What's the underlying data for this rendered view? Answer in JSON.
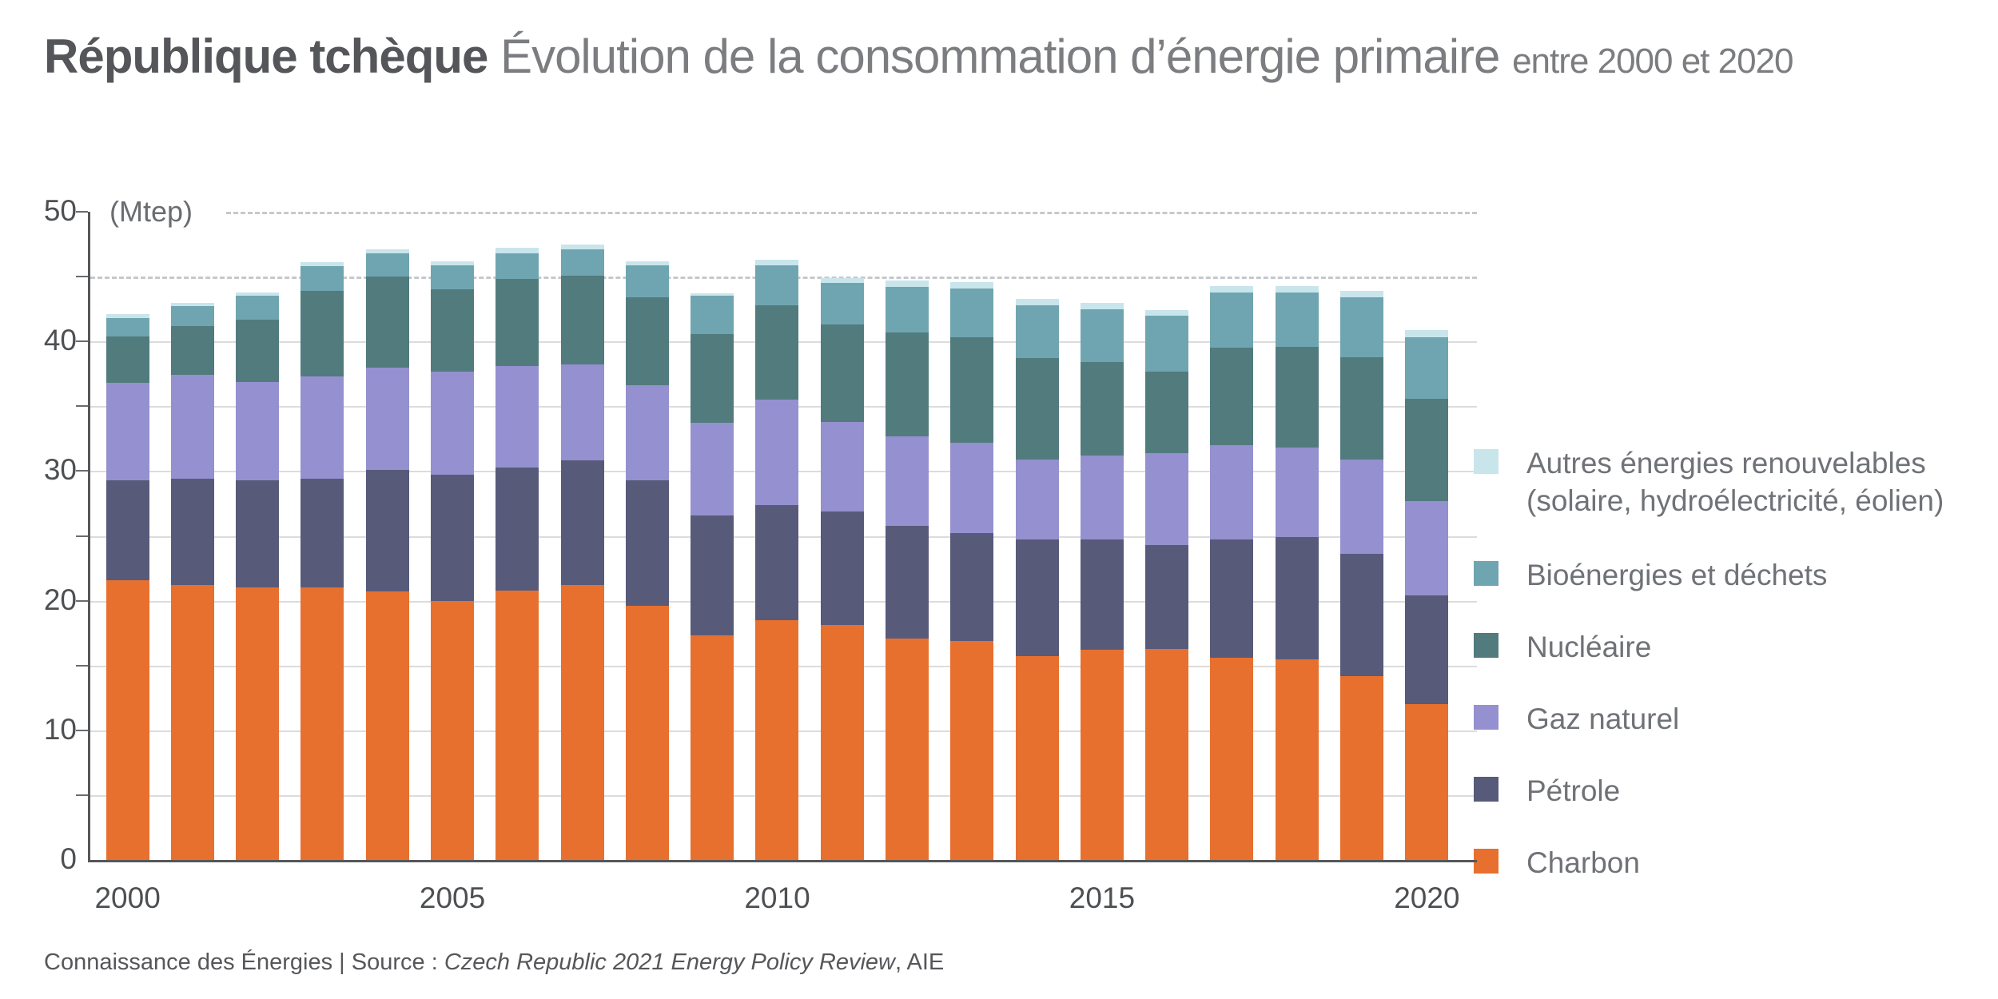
{
  "title": {
    "region": "République tchèque",
    "main": " Évolution de la consommation d’énergie primaire ",
    "period": "entre 2000 et 2020"
  },
  "axis": {
    "unit": "(Mtep)",
    "y_labels": [
      "0",
      "10",
      "20",
      "30",
      "40",
      "50"
    ],
    "y_minor_step": 5,
    "y_max": 50,
    "x_labels": [
      "2000",
      "2005",
      "2010",
      "2015",
      "2020"
    ]
  },
  "legend": [
    {
      "name": "autres",
      "label": "Autres énergies renouvelables",
      "label2": "(solaire, hydroélectricité, éolien)",
      "color": "#C8E5EB"
    },
    {
      "name": "bioenergies",
      "label": "Bioénergies et déchets",
      "label2": "",
      "color": "#6FA5B0"
    },
    {
      "name": "nucleaire",
      "label": "Nucléaire",
      "label2": "",
      "color": "#527B7E"
    },
    {
      "name": "gaz-naturel",
      "label": "Gaz naturel",
      "label2": "",
      "color": "#9590CF"
    },
    {
      "name": "petrole",
      "label": "Pétrole",
      "label2": "",
      "color": "#585A7A"
    },
    {
      "name": "charbon",
      "label": "Charbon",
      "label2": "",
      "color": "#E7702F"
    }
  ],
  "chart_data": {
    "type": "bar",
    "stacked": true,
    "title": "République tchèque — Évolution de la consommation d’énergie primaire entre 2000 et 2020",
    "ylabel": "Mtep",
    "ylim": [
      0,
      50
    ],
    "grid": "horizontal, dashed at 45 and 50",
    "legend_position": "right",
    "years": [
      2000,
      2001,
      2002,
      2003,
      2004,
      2005,
      2006,
      2007,
      2008,
      2009,
      2010,
      2011,
      2012,
      2013,
      2014,
      2015,
      2016,
      2017,
      2018,
      2019,
      2020
    ],
    "series": [
      {
        "name": "Charbon",
        "color": "#E7702F",
        "values": [
          21.6,
          21.2,
          21.0,
          21.0,
          20.7,
          20.0,
          20.8,
          21.2,
          19.6,
          17.3,
          18.5,
          18.1,
          17.1,
          16.9,
          15.7,
          16.2,
          16.3,
          15.6,
          15.5,
          14.2,
          12.0
        ]
      },
      {
        "name": "Pétrole",
        "color": "#585A7A",
        "values": [
          7.7,
          8.2,
          8.3,
          8.4,
          9.4,
          9.7,
          9.5,
          9.6,
          9.7,
          9.3,
          8.9,
          8.8,
          8.7,
          8.3,
          9.0,
          8.5,
          8.0,
          9.1,
          9.4,
          9.4,
          8.4
        ]
      },
      {
        "name": "Gaz naturel",
        "color": "#9590CF",
        "values": [
          7.5,
          8.0,
          7.6,
          7.9,
          7.9,
          8.0,
          7.8,
          7.4,
          7.3,
          7.1,
          8.1,
          6.9,
          6.9,
          7.0,
          6.2,
          6.5,
          7.1,
          7.3,
          6.9,
          7.3,
          7.3
        ]
      },
      {
        "name": "Nucléaire",
        "color": "#527B7E",
        "values": [
          3.6,
          3.8,
          4.8,
          6.6,
          7.0,
          6.3,
          6.7,
          6.9,
          6.8,
          6.9,
          7.3,
          7.5,
          8.0,
          8.1,
          7.8,
          7.2,
          6.3,
          7.5,
          7.8,
          7.9,
          7.9
        ]
      },
      {
        "name": "Bioénergies et déchets",
        "color": "#6FA5B0",
        "values": [
          1.4,
          1.5,
          1.8,
          1.9,
          1.8,
          1.9,
          2.0,
          2.0,
          2.5,
          2.9,
          3.1,
          3.2,
          3.5,
          3.8,
          4.1,
          4.1,
          4.3,
          4.3,
          4.2,
          4.6,
          4.7
        ]
      },
      {
        "name": "Autres énergies renouvelables (solaire, hydroélectricité, éolien)",
        "color": "#C8E5EB",
        "values": [
          0.3,
          0.3,
          0.3,
          0.3,
          0.3,
          0.3,
          0.4,
          0.4,
          0.3,
          0.2,
          0.4,
          0.4,
          0.5,
          0.5,
          0.5,
          0.5,
          0.4,
          0.5,
          0.5,
          0.5,
          0.6
        ]
      }
    ]
  },
  "footer": {
    "prefix": "Connaissance des Énergies | Source : ",
    "source_italic": "Czech Republic 2021 Energy Policy Review",
    "suffix": ", AIE"
  }
}
